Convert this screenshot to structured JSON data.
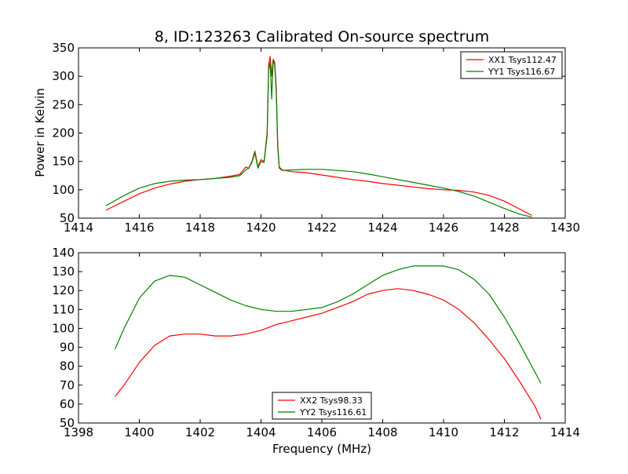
{
  "chart_data": [
    {
      "type": "line",
      "title": "8, ID:123263 Calibrated On-source spectrum",
      "xlabel": "",
      "ylabel": "Power in Kelvin",
      "xlim": [
        1414,
        1430
      ],
      "ylim": [
        50,
        350
      ],
      "xticks": [
        1414,
        1416,
        1418,
        1420,
        1422,
        1424,
        1426,
        1428,
        1430
      ],
      "yticks": [
        50,
        100,
        150,
        200,
        250,
        300,
        350
      ],
      "grid": false,
      "legend_position": "top-right",
      "series": [
        {
          "name": "XX1 Tsys112.47",
          "color": "#ff0000",
          "x": [
            1414.9,
            1415.5,
            1416.0,
            1416.5,
            1417.0,
            1417.5,
            1418.0,
            1418.5,
            1419.0,
            1419.3,
            1419.5,
            1419.6,
            1419.7,
            1419.8,
            1419.9,
            1420.0,
            1420.1,
            1420.2,
            1420.25,
            1420.3,
            1420.35,
            1420.4,
            1420.45,
            1420.5,
            1420.55,
            1420.6,
            1420.7,
            1421.0,
            1421.5,
            1422.0,
            1422.5,
            1423.0,
            1423.5,
            1424.0,
            1424.5,
            1425.0,
            1425.5,
            1426.0,
            1426.5,
            1427.0,
            1427.5,
            1428.0,
            1428.5,
            1428.9
          ],
          "y": [
            64,
            80,
            93,
            103,
            110,
            115,
            118,
            120,
            124,
            127,
            140,
            138,
            150,
            168,
            140,
            153,
            150,
            200,
            320,
            335,
            300,
            330,
            325,
            280,
            180,
            140,
            135,
            132,
            130,
            126,
            122,
            118,
            115,
            111,
            108,
            105,
            102,
            100,
            99,
            96,
            90,
            80,
            66,
            55
          ]
        },
        {
          "name": "YY1 Tsys116.67",
          "color": "#008000",
          "x": [
            1414.9,
            1415.5,
            1416.0,
            1416.5,
            1417.0,
            1417.5,
            1418.0,
            1418.5,
            1419.0,
            1419.3,
            1419.5,
            1419.6,
            1419.7,
            1419.8,
            1419.9,
            1420.0,
            1420.1,
            1420.2,
            1420.25,
            1420.3,
            1420.35,
            1420.4,
            1420.45,
            1420.5,
            1420.55,
            1420.6,
            1420.7,
            1421.0,
            1421.5,
            1422.0,
            1422.5,
            1423.0,
            1423.5,
            1424.0,
            1424.5,
            1425.0,
            1425.5,
            1426.0,
            1426.5,
            1427.0,
            1427.5,
            1428.0,
            1428.5,
            1428.9
          ],
          "y": [
            72,
            90,
            103,
            111,
            115,
            117,
            118,
            120,
            122,
            125,
            135,
            138,
            148,
            165,
            138,
            150,
            148,
            195,
            310,
            325,
            260,
            328,
            320,
            270,
            175,
            138,
            134,
            135,
            136,
            136,
            134,
            132,
            128,
            123,
            118,
            113,
            108,
            103,
            97,
            89,
            78,
            67,
            57,
            52
          ]
        }
      ]
    },
    {
      "type": "line",
      "title": "",
      "xlabel": "Frequency (MHz)",
      "ylabel": "",
      "xlim": [
        1398,
        1414
      ],
      "ylim": [
        50,
        140
      ],
      "xticks": [
        1398,
        1400,
        1402,
        1404,
        1406,
        1408,
        1410,
        1412,
        1414
      ],
      "yticks": [
        50,
        60,
        70,
        80,
        90,
        100,
        110,
        120,
        130,
        140
      ],
      "grid": false,
      "legend_position": "bottom-center",
      "series": [
        {
          "name": "XX2 Tsys98.33",
          "color": "#ff0000",
          "x": [
            1399.2,
            1399.5,
            1400.0,
            1400.5,
            1401.0,
            1401.5,
            1402.0,
            1402.5,
            1403.0,
            1403.5,
            1404.0,
            1404.5,
            1405.0,
            1405.5,
            1406.0,
            1406.5,
            1407.0,
            1407.5,
            1408.0,
            1408.5,
            1409.0,
            1409.5,
            1410.0,
            1410.5,
            1411.0,
            1411.5,
            1412.0,
            1412.5,
            1413.0,
            1413.2
          ],
          "y": [
            64,
            70,
            82,
            91,
            96,
            97,
            97,
            96,
            96,
            97,
            99,
            102,
            104,
            106,
            108,
            111,
            114,
            118,
            120,
            121,
            120,
            118,
            115,
            110,
            103,
            94,
            84,
            72,
            59,
            52
          ]
        },
        {
          "name": "YY2 Tsys116.61",
          "color": "#008000",
          "x": [
            1399.2,
            1399.5,
            1400.0,
            1400.5,
            1401.0,
            1401.5,
            1402.0,
            1402.5,
            1403.0,
            1403.5,
            1404.0,
            1404.5,
            1405.0,
            1405.5,
            1406.0,
            1406.5,
            1407.0,
            1407.5,
            1408.0,
            1408.5,
            1409.0,
            1409.5,
            1410.0,
            1410.5,
            1411.0,
            1411.5,
            1412.0,
            1412.5,
            1413.0,
            1413.2
          ],
          "y": [
            89,
            100,
            116,
            125,
            128,
            127,
            123,
            119,
            115,
            112,
            110,
            109,
            109,
            110,
            111,
            114,
            118,
            123,
            128,
            131,
            133,
            133,
            133,
            131,
            126,
            118,
            106,
            92,
            77,
            71
          ]
        }
      ]
    }
  ]
}
